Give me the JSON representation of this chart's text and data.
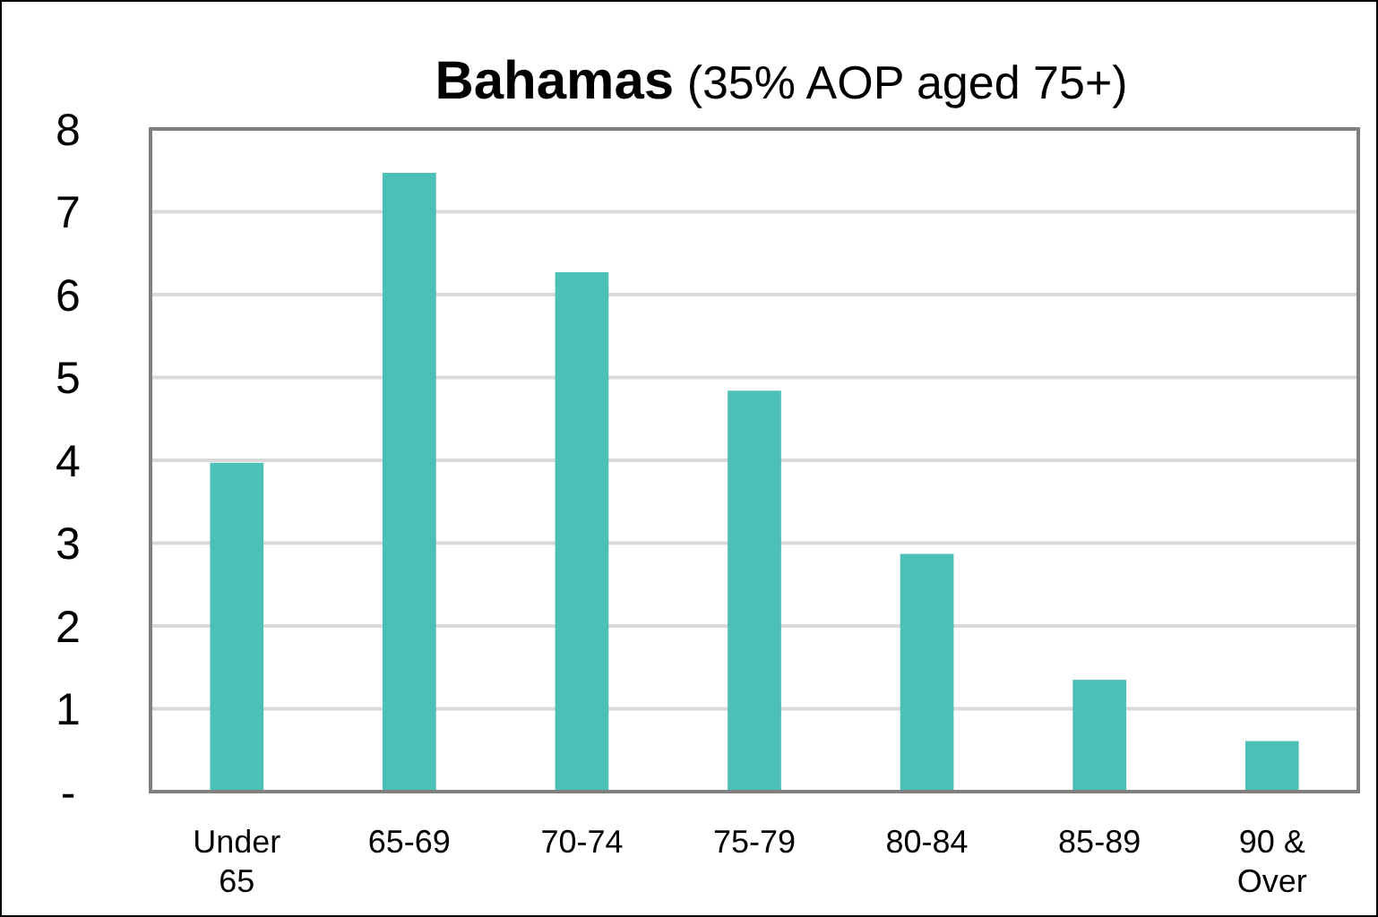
{
  "chart_data": {
    "type": "bar",
    "title": "Bahamas",
    "subtitle": "(35% AOP aged 75+)",
    "categories": [
      "Under 65",
      "65-69",
      "70-74",
      "75-79",
      "80-84",
      "85-89",
      "90 & Over"
    ],
    "values": [
      3.97,
      7.47,
      6.27,
      4.84,
      2.87,
      1.35,
      0.61
    ],
    "color": "#4cbfb6",
    "ylim": [
      0,
      8
    ],
    "yticks": [
      {
        "value": 0,
        "label": "-"
      },
      1,
      2,
      3,
      4,
      5,
      6,
      7,
      8
    ],
    "grid": "y"
  }
}
